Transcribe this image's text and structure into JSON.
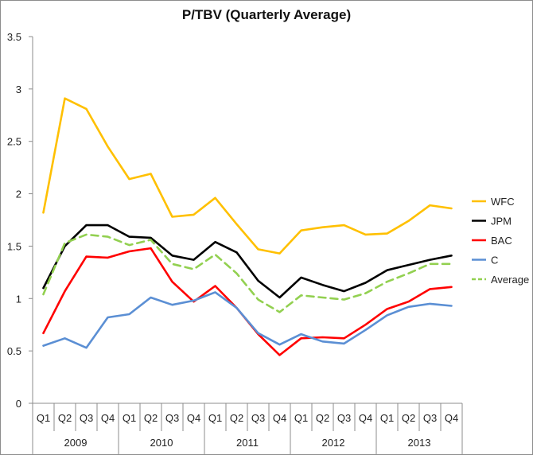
{
  "chart_data": {
    "type": "line",
    "title": "P/TBV (Quarterly Average)",
    "quarters": [
      "Q1",
      "Q2",
      "Q3",
      "Q4",
      "Q1",
      "Q2",
      "Q3",
      "Q4",
      "Q1",
      "Q2",
      "Q3",
      "Q4",
      "Q1",
      "Q2",
      "Q3",
      "Q4",
      "Q1",
      "Q2",
      "Q3",
      "Q4"
    ],
    "years": [
      "2009",
      "2010",
      "2011",
      "2012",
      "2013"
    ],
    "ylim": [
      0,
      3.5
    ],
    "yticks": [
      "0",
      "0.5",
      "1",
      "1.5",
      "2",
      "2.5",
      "3",
      "3.5"
    ],
    "grid": false,
    "legend_position": "right",
    "series": [
      {
        "name": "WFC",
        "color": "#FFC000",
        "dashed": false,
        "values": [
          1.82,
          2.91,
          2.81,
          2.45,
          2.14,
          2.19,
          1.78,
          1.8,
          1.96,
          1.71,
          1.47,
          1.43,
          1.65,
          1.68,
          1.7,
          1.61,
          1.62,
          1.74,
          1.89,
          1.86
        ]
      },
      {
        "name": "JPM",
        "color": "#000000",
        "dashed": false,
        "values": [
          1.1,
          1.5,
          1.7,
          1.7,
          1.59,
          1.58,
          1.41,
          1.37,
          1.54,
          1.44,
          1.17,
          1.01,
          1.2,
          1.13,
          1.07,
          1.15,
          1.27,
          1.32,
          1.37,
          1.41
        ]
      },
      {
        "name": "BAC",
        "color": "#FF0000",
        "dashed": false,
        "values": [
          0.67,
          1.07,
          1.4,
          1.39,
          1.45,
          1.48,
          1.16,
          0.97,
          1.12,
          0.91,
          0.66,
          0.46,
          0.62,
          0.63,
          0.62,
          0.75,
          0.9,
          0.97,
          1.09,
          1.11
        ]
      },
      {
        "name": "C",
        "color": "#5B8FD4",
        "dashed": false,
        "values": [
          0.55,
          0.62,
          0.53,
          0.82,
          0.85,
          1.01,
          0.94,
          0.98,
          1.06,
          0.91,
          0.67,
          0.56,
          0.66,
          0.59,
          0.57,
          0.7,
          0.84,
          0.92,
          0.95,
          0.93
        ]
      },
      {
        "name": "Average",
        "color": "#92D050",
        "dashed": true,
        "values": [
          1.04,
          1.53,
          1.61,
          1.59,
          1.51,
          1.56,
          1.33,
          1.28,
          1.42,
          1.24,
          0.99,
          0.87,
          1.03,
          1.01,
          0.99,
          1.05,
          1.16,
          1.24,
          1.33,
          1.33
        ]
      }
    ]
  }
}
